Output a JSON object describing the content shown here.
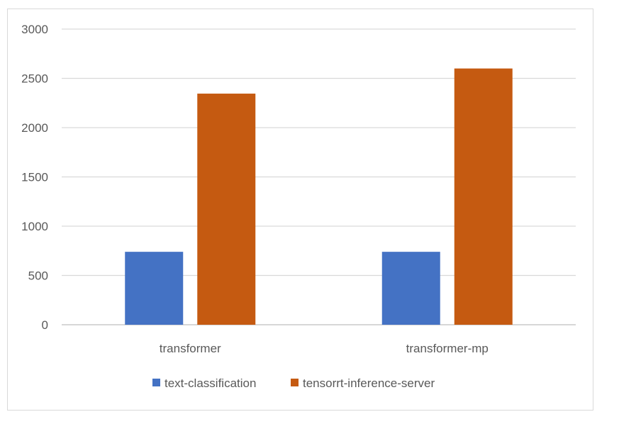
{
  "chart_data": {
    "type": "bar",
    "categories": [
      "transformer",
      "transformer-mp"
    ],
    "series": [
      {
        "name": "text-classification",
        "values": [
          740,
          740
        ],
        "color": "#4472c4"
      },
      {
        "name": "tensorrt-inference-server",
        "values": [
          2345,
          2600
        ],
        "color": "#c55a11"
      }
    ],
    "ylim": [
      0,
      3000
    ],
    "yticks": [
      "0",
      "500",
      "1000",
      "1500",
      "2000",
      "2500",
      "3000"
    ],
    "grid": true,
    "legend_position": "bottom"
  }
}
